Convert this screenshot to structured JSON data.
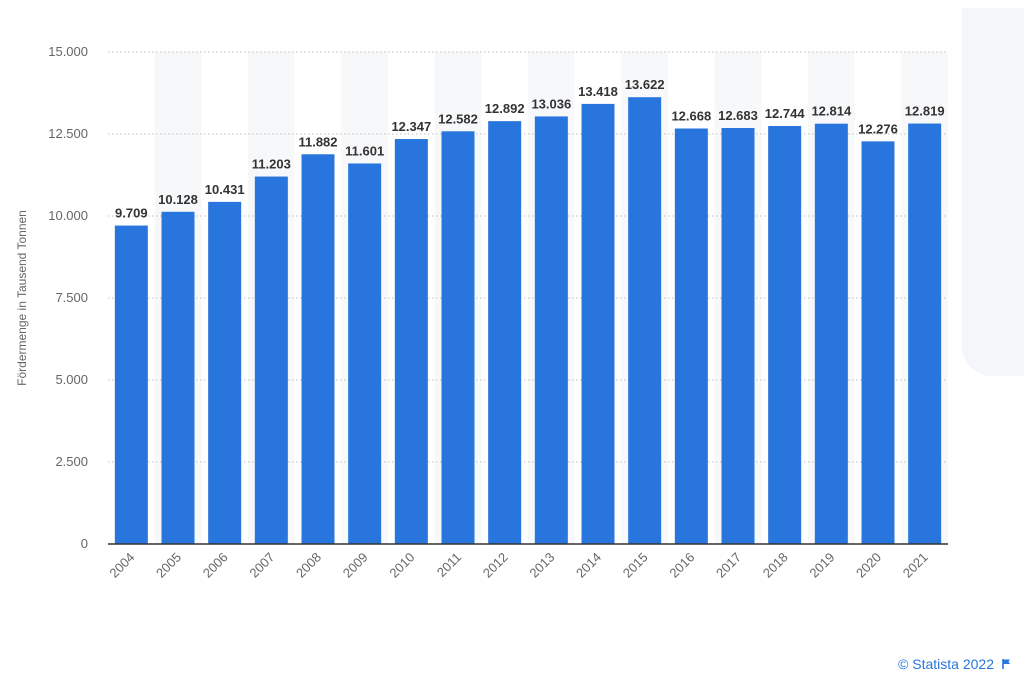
{
  "chart_data": {
    "type": "bar",
    "title": "",
    "ylabel": "Fördermenge in Tausend Tonnen",
    "xlabel": "",
    "categories": [
      "2004",
      "2005",
      "2006",
      "2007",
      "2008",
      "2009",
      "2010",
      "2011",
      "2012",
      "2013",
      "2014",
      "2015",
      "2016",
      "2017",
      "2018",
      "2019",
      "2020",
      "2021"
    ],
    "values": [
      9709,
      10128,
      10431,
      11203,
      11882,
      11601,
      12347,
      12582,
      12892,
      13036,
      13418,
      13622,
      12668,
      12683,
      12744,
      12814,
      12276,
      12819
    ],
    "value_labels": [
      "9.709",
      "10.128",
      "10.431",
      "11.203",
      "11.882",
      "11.601",
      "12.347",
      "12.582",
      "12.892",
      "13.036",
      "13.418",
      "13.622",
      "12.668",
      "12.683",
      "12.744",
      "12.814",
      "12.276",
      "12.819"
    ],
    "yticks": [
      0,
      2500,
      5000,
      7500,
      10000,
      12500,
      15000
    ],
    "ytick_labels": [
      "0",
      "2.500",
      "5.000",
      "7.500",
      "10.000",
      "12.500",
      "15.000"
    ],
    "ylim": [
      0,
      15000
    ],
    "grid": true,
    "legend": "none",
    "bar_color": "#2876dd"
  },
  "footer": {
    "credit": "© Statista 2022",
    "credit_icon": "flag-icon"
  }
}
